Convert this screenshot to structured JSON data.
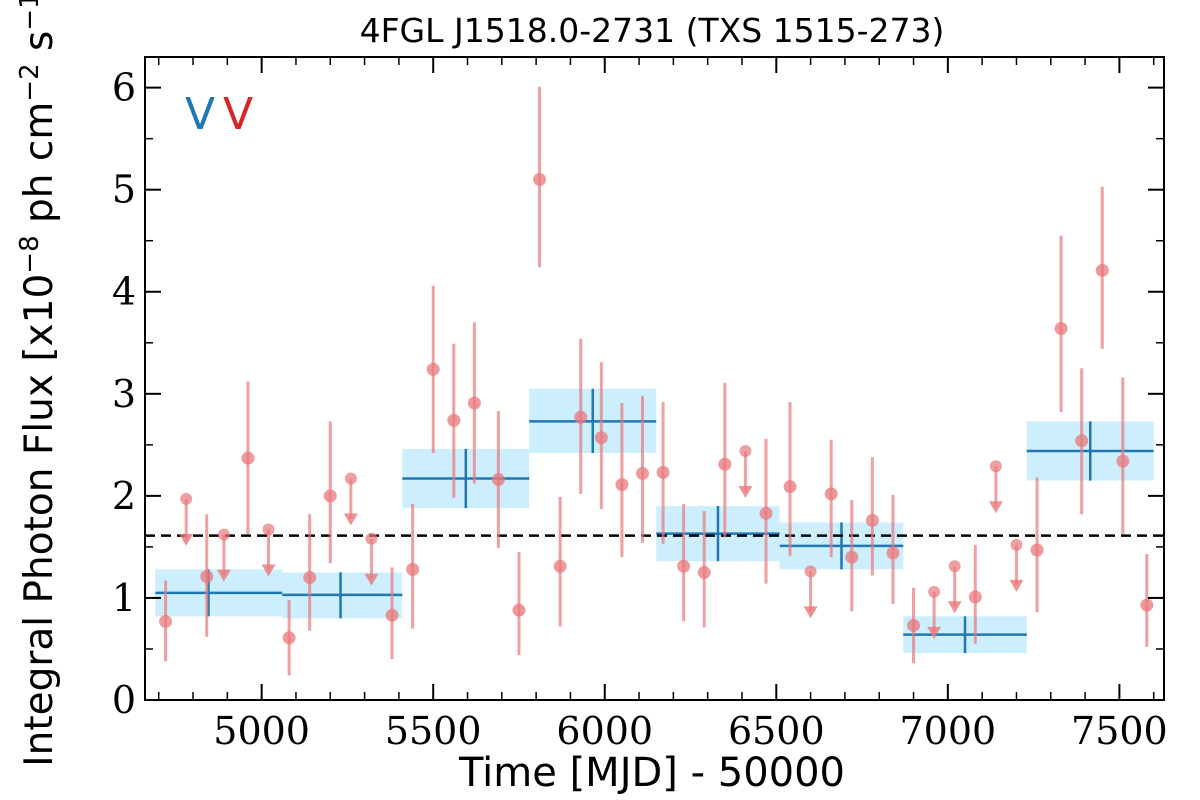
{
  "chart_data": {
    "type": "scatter",
    "title": "4FGL J1518.0-2731 (TXS 1515-273)",
    "xlabel": "Time [MJD] - 50000",
    "ylabel_main": "Integral Photon Flux [x10",
    "ylabel_exp1": "−8",
    "ylabel_mid": " ph cm",
    "ylabel_exp2": "−2",
    "ylabel_mid2": " s",
    "ylabel_exp3": "−1",
    "ylabel_end": "]",
    "xlim": [
      4660,
      7630
    ],
    "ylim": [
      0,
      6.3
    ],
    "x_ticks": [
      5000,
      5500,
      6000,
      6500,
      7000,
      7500
    ],
    "y_ticks": [
      0,
      1,
      2,
      3,
      4,
      5,
      6
    ],
    "mean_flux": 1.61,
    "legend": [
      {
        "label": "V",
        "color": "#1f77b4"
      },
      {
        "label": "V",
        "color": "#d62728"
      }
    ],
    "colors": {
      "blocks": "#1f77b4",
      "block_fill": "#cdeefc",
      "points": "#e8787c",
      "mean_line": "#000000"
    },
    "bayesian_blocks": [
      {
        "x0": 4690,
        "x1": 5060,
        "xc": 4845,
        "y": 1.05,
        "ylo": 0.82,
        "yhi": 1.28
      },
      {
        "x0": 5060,
        "x1": 5410,
        "xc": 5230,
        "y": 1.03,
        "ylo": 0.8,
        "yhi": 1.25
      },
      {
        "x0": 5410,
        "x1": 5780,
        "xc": 5595,
        "y": 2.17,
        "ylo": 1.88,
        "yhi": 2.46
      },
      {
        "x0": 5780,
        "x1": 6150,
        "xc": 5965,
        "y": 2.73,
        "ylo": 2.42,
        "yhi": 3.05
      },
      {
        "x0": 6150,
        "x1": 6510,
        "xc": 6330,
        "y": 1.63,
        "ylo": 1.36,
        "yhi": 1.9
      },
      {
        "x0": 6510,
        "x1": 6870,
        "xc": 6690,
        "y": 1.51,
        "ylo": 1.28,
        "yhi": 1.74
      },
      {
        "x0": 6870,
        "x1": 7230,
        "xc": 7050,
        "y": 0.64,
        "ylo": 0.46,
        "yhi": 0.82
      },
      {
        "x0": 7230,
        "x1": 7600,
        "xc": 7415,
        "y": 2.44,
        "ylo": 2.15,
        "yhi": 2.73
      }
    ],
    "points": [
      {
        "x": 4720,
        "y": 0.77,
        "ylo": 0.38,
        "yhi": 1.17
      },
      {
        "x": 4840,
        "y": 1.21,
        "ylo": 0.62,
        "yhi": 1.82
      },
      {
        "x": 4960,
        "y": 2.37,
        "ylo": 1.62,
        "yhi": 3.12
      },
      {
        "x": 5080,
        "y": 0.61,
        "ylo": 0.24,
        "yhi": 0.98
      },
      {
        "x": 5140,
        "y": 1.2,
        "ylo": 0.68,
        "yhi": 1.82
      },
      {
        "x": 5200,
        "y": 2.0,
        "ylo": 1.34,
        "yhi": 2.73
      },
      {
        "x": 5380,
        "y": 0.83,
        "ylo": 0.4,
        "yhi": 1.3
      },
      {
        "x": 5440,
        "y": 1.28,
        "ylo": 0.7,
        "yhi": 1.92
      },
      {
        "x": 5500,
        "y": 3.24,
        "ylo": 2.42,
        "yhi": 4.06
      },
      {
        "x": 5560,
        "y": 2.74,
        "ylo": 1.98,
        "yhi": 3.49
      },
      {
        "x": 5620,
        "y": 2.91,
        "ylo": 2.12,
        "yhi": 3.7
      },
      {
        "x": 5690,
        "y": 2.16,
        "ylo": 1.49,
        "yhi": 2.83
      },
      {
        "x": 5750,
        "y": 0.88,
        "ylo": 0.44,
        "yhi": 1.45
      },
      {
        "x": 5810,
        "y": 5.1,
        "ylo": 4.24,
        "yhi": 6.01
      },
      {
        "x": 5870,
        "y": 1.31,
        "ylo": 0.72,
        "yhi": 1.99
      },
      {
        "x": 5930,
        "y": 2.77,
        "ylo": 2.02,
        "yhi": 3.54
      },
      {
        "x": 5990,
        "y": 2.57,
        "ylo": 1.87,
        "yhi": 3.31
      },
      {
        "x": 6050,
        "y": 2.11,
        "ylo": 1.4,
        "yhi": 2.91
      },
      {
        "x": 6110,
        "y": 2.22,
        "ylo": 1.54,
        "yhi": 2.98
      },
      {
        "x": 6170,
        "y": 2.23,
        "ylo": 1.53,
        "yhi": 2.92
      },
      {
        "x": 6230,
        "y": 1.31,
        "ylo": 0.77,
        "yhi": 1.92
      },
      {
        "x": 6290,
        "y": 1.25,
        "ylo": 0.71,
        "yhi": 1.85
      },
      {
        "x": 6350,
        "y": 2.31,
        "ylo": 1.6,
        "yhi": 3.11
      },
      {
        "x": 6470,
        "y": 1.83,
        "ylo": 1.14,
        "yhi": 2.56
      },
      {
        "x": 6540,
        "y": 2.09,
        "ylo": 1.41,
        "yhi": 2.92
      },
      {
        "x": 6660,
        "y": 2.02,
        "ylo": 1.4,
        "yhi": 2.55
      },
      {
        "x": 6720,
        "y": 1.4,
        "ylo": 0.87,
        "yhi": 1.96
      },
      {
        "x": 6780,
        "y": 1.76,
        "ylo": 1.22,
        "yhi": 2.38
      },
      {
        "x": 6840,
        "y": 1.44,
        "ylo": 0.94,
        "yhi": 2.01
      },
      {
        "x": 6900,
        "y": 0.73,
        "ylo": 0.36,
        "yhi": 1.1
      },
      {
        "x": 7080,
        "y": 1.01,
        "ylo": 0.55,
        "yhi": 1.52
      },
      {
        "x": 7260,
        "y": 1.47,
        "ylo": 0.86,
        "yhi": 2.18
      },
      {
        "x": 7330,
        "y": 3.64,
        "ylo": 2.82,
        "yhi": 4.55
      },
      {
        "x": 7390,
        "y": 2.54,
        "ylo": 1.82,
        "yhi": 3.25
      },
      {
        "x": 7450,
        "y": 4.21,
        "ylo": 3.44,
        "yhi": 5.03
      },
      {
        "x": 7510,
        "y": 2.34,
        "ylo": 1.62,
        "yhi": 3.16
      },
      {
        "x": 7580,
        "y": 0.93,
        "ylo": 0.52,
        "yhi": 1.43
      }
    ],
    "upper_limits": [
      {
        "x": 4780,
        "y": 1.97
      },
      {
        "x": 4890,
        "y": 1.62
      },
      {
        "x": 5020,
        "y": 1.67
      },
      {
        "x": 5260,
        "y": 2.17
      },
      {
        "x": 5320,
        "y": 1.58
      },
      {
        "x": 6410,
        "y": 2.44
      },
      {
        "x": 6600,
        "y": 1.26
      },
      {
        "x": 6960,
        "y": 1.06
      },
      {
        "x": 7020,
        "y": 1.31
      },
      {
        "x": 7140,
        "y": 2.29
      },
      {
        "x": 7200,
        "y": 1.52
      }
    ]
  }
}
